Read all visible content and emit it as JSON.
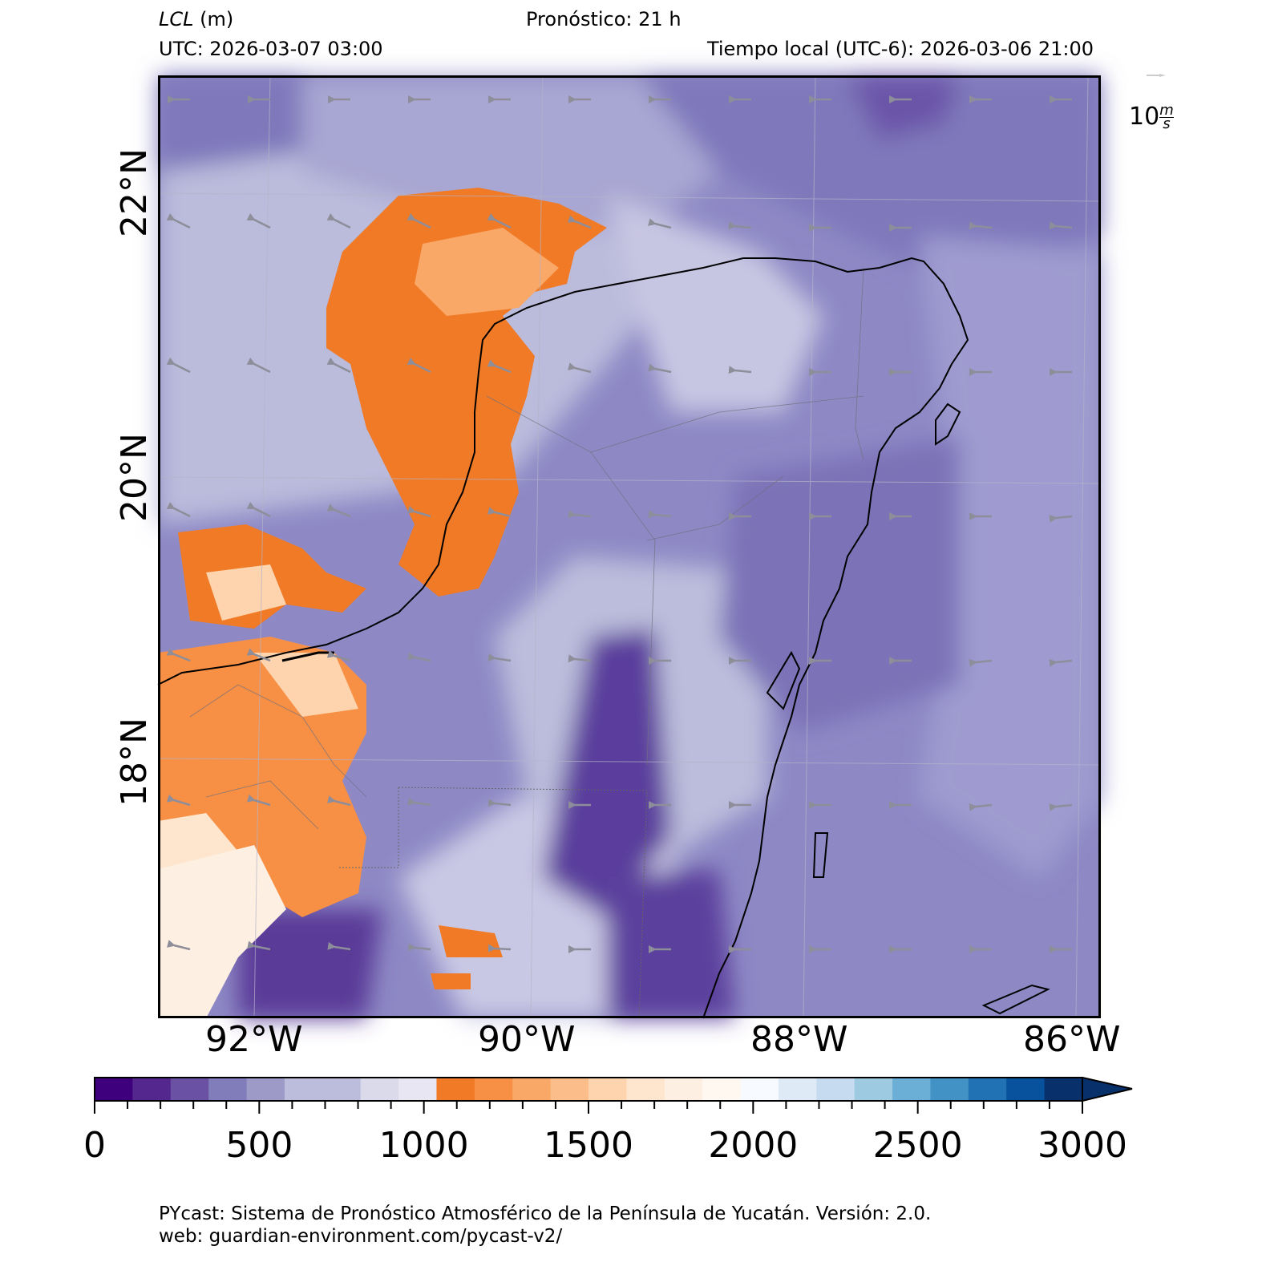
{
  "header": {
    "variable_label": "LCL",
    "variable_unit": "(m)",
    "forecast": "Pronóstico: 21 h",
    "utc": "UTC:  2026-03-07 03:00",
    "local": "Tiempo local (UTC-6): 2026-03-06 21:00"
  },
  "axes": {
    "lat_labels": [
      "22°N",
      "20°N",
      "18°N"
    ],
    "lon_labels": [
      "92°W",
      "90°W",
      "88°W",
      "86°W"
    ]
  },
  "wind_reference": {
    "value": "10",
    "unit_num": "m",
    "unit_den": "s"
  },
  "colorbar": {
    "min": 0,
    "max": 3000,
    "extend": "max",
    "tick_labels": [
      "0",
      "500",
      "1000",
      "1500",
      "2000",
      "2500",
      "3000"
    ],
    "colors": [
      "#3f007d",
      "#54278f",
      "#6a51a3",
      "#807dba",
      "#9e9ac8",
      "#bcbddc",
      "#bcbddc",
      "#dadaeb",
      "#e8e6f2",
      "#f07a26",
      "#f78f45",
      "#f9a868",
      "#fbbe8a",
      "#fdd4ae",
      "#fee5cd",
      "#fdf0e2",
      "#fff8f0",
      "#f7fbff",
      "#deebf7",
      "#c6dbef",
      "#9ecae1",
      "#6baed6",
      "#4292c6",
      "#2171b5",
      "#08519c",
      "#08306b"
    ]
  },
  "footer": {
    "line1": "PYcast: Sistema de Pronóstico Atmosférico de la Península de Yucatán. Versión: 2.0.",
    "line2": "web: guardian-environment.com/pycast-v2/"
  }
}
